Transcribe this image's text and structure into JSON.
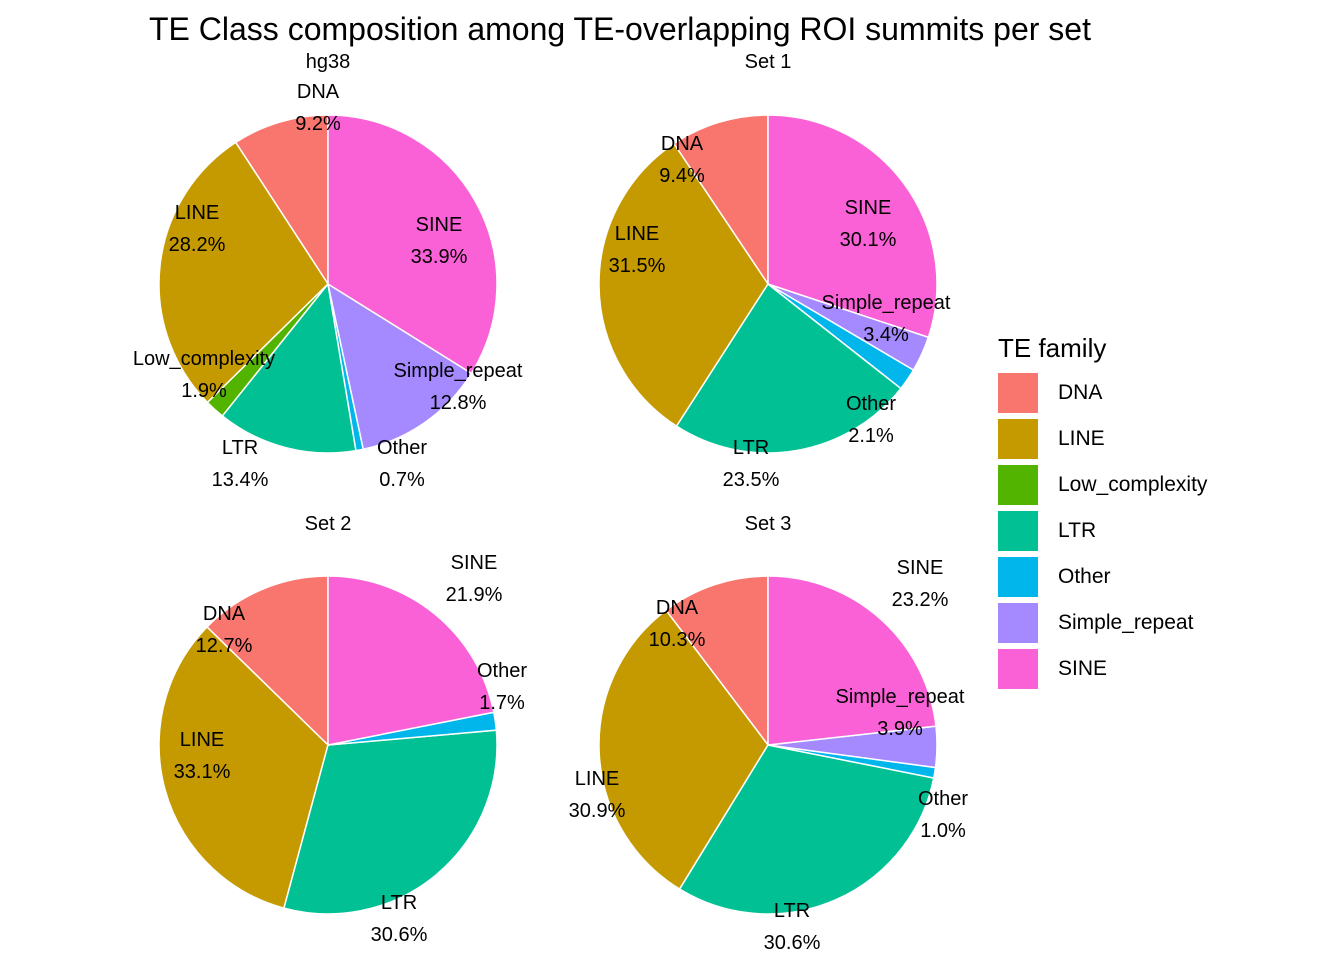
{
  "chart_data": {
    "type": "pie",
    "title": "TE Class composition among TE-overlapping ROI summits per set",
    "legend": {
      "title": "TE family",
      "placement": "right",
      "entries": [
        {
          "name": "DNA",
          "color": "#F8766D"
        },
        {
          "name": "LINE",
          "color": "#C49A00"
        },
        {
          "name": "Low_complexity",
          "color": "#53B400"
        },
        {
          "name": "LTR",
          "color": "#00C094"
        },
        {
          "name": "Other",
          "color": "#00B6EB"
        },
        {
          "name": "Simple_repeat",
          "color": "#A58AFF"
        },
        {
          "name": "SINE",
          "color": "#FB61D7"
        }
      ]
    },
    "facets": [
      {
        "name": "hg38",
        "slices": [
          {
            "category": "DNA",
            "value": 9.2,
            "label": "9.2%"
          },
          {
            "category": "LINE",
            "value": 28.2,
            "label": "28.2%"
          },
          {
            "category": "Low_complexity",
            "value": 1.9,
            "label": "1.9%"
          },
          {
            "category": "LTR",
            "value": 13.4,
            "label": "13.4%"
          },
          {
            "category": "Other",
            "value": 0.7,
            "label": "0.7%"
          },
          {
            "category": "Simple_repeat",
            "value": 12.8,
            "label": "12.8%"
          },
          {
            "category": "SINE",
            "value": 33.9,
            "label": "33.9%"
          }
        ]
      },
      {
        "name": "Set  1",
        "slices": [
          {
            "category": "DNA",
            "value": 9.4,
            "label": "9.4%"
          },
          {
            "category": "LINE",
            "value": 31.5,
            "label": "31.5%"
          },
          {
            "category": "LTR",
            "value": 23.5,
            "label": "23.5%"
          },
          {
            "category": "Other",
            "value": 2.1,
            "label": "2.1%"
          },
          {
            "category": "Simple_repeat",
            "value": 3.4,
            "label": "3.4%"
          },
          {
            "category": "SINE",
            "value": 30.1,
            "label": "30.1%"
          }
        ]
      },
      {
        "name": "Set  2",
        "slices": [
          {
            "category": "DNA",
            "value": 12.7,
            "label": "12.7%"
          },
          {
            "category": "LINE",
            "value": 33.1,
            "label": "33.1%"
          },
          {
            "category": "LTR",
            "value": 30.6,
            "label": "30.6%"
          },
          {
            "category": "Other",
            "value": 1.7,
            "label": "1.7%"
          },
          {
            "category": "SINE",
            "value": 21.9,
            "label": "21.9%"
          }
        ]
      },
      {
        "name": "Set  3",
        "slices": [
          {
            "category": "DNA",
            "value": 10.3,
            "label": "10.3%"
          },
          {
            "category": "LINE",
            "value": 30.9,
            "label": "30.9%"
          },
          {
            "category": "LTR",
            "value": 30.6,
            "label": "30.6%"
          },
          {
            "category": "Other",
            "value": 1.0,
            "label": "1.0%"
          },
          {
            "category": "Simple_repeat",
            "value": 3.9,
            "label": "3.9%"
          },
          {
            "category": "SINE",
            "value": 23.2,
            "label": "23.2%"
          }
        ]
      }
    ]
  }
}
